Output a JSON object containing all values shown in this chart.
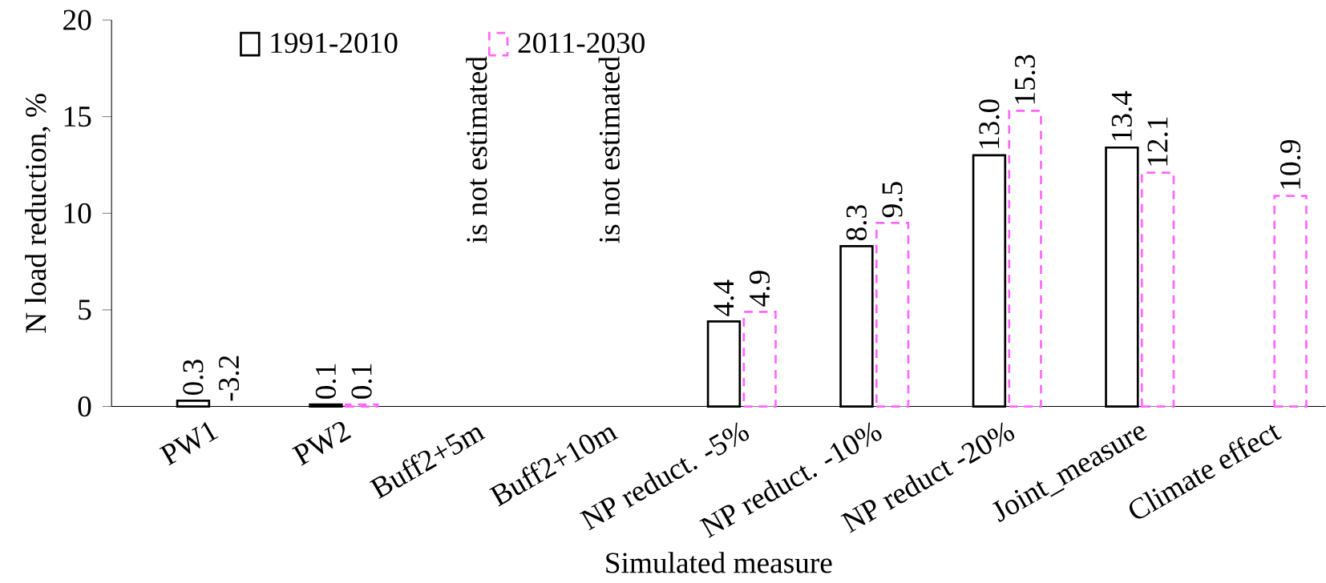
{
  "chart_data": {
    "type": "bar",
    "xlabel": "Simulated measure",
    "ylabel": "N load reduction, %",
    "categories": [
      "PW1",
      "PW2",
      "Buff2+5m",
      "Buff2+10m",
      "NP reduct. -5%",
      "NP reduct. -10%",
      "NP reduct -20%",
      "Joint_measure",
      "Climate effect"
    ],
    "series": [
      {
        "name": "1991-2010",
        "color": "#000000",
        "line_style": "solid",
        "values": [
          0.3,
          0.1,
          null,
          null,
          4.4,
          8.3,
          13.0,
          13.4,
          null
        ],
        "value_labels": [
          "0.3",
          "0.1",
          null,
          null,
          "4.4",
          "8.3",
          "13.0",
          "13.4",
          null
        ]
      },
      {
        "name": "2011-2030",
        "color": "#ff66ff",
        "line_style": "dashed",
        "values": [
          null,
          0.1,
          null,
          null,
          4.9,
          9.5,
          15.3,
          12.1,
          10.9
        ],
        "value_labels": [
          "-3.2",
          "0.1",
          null,
          null,
          "4.9",
          "9.5",
          "15.3",
          "12.1",
          "10.9"
        ]
      }
    ],
    "annotations": [
      "is not estimated",
      "is not estimated"
    ],
    "ylim": [
      0,
      20
    ],
    "yticks": [
      0,
      5,
      10,
      15,
      20
    ],
    "grid": false,
    "legend": "top left"
  }
}
